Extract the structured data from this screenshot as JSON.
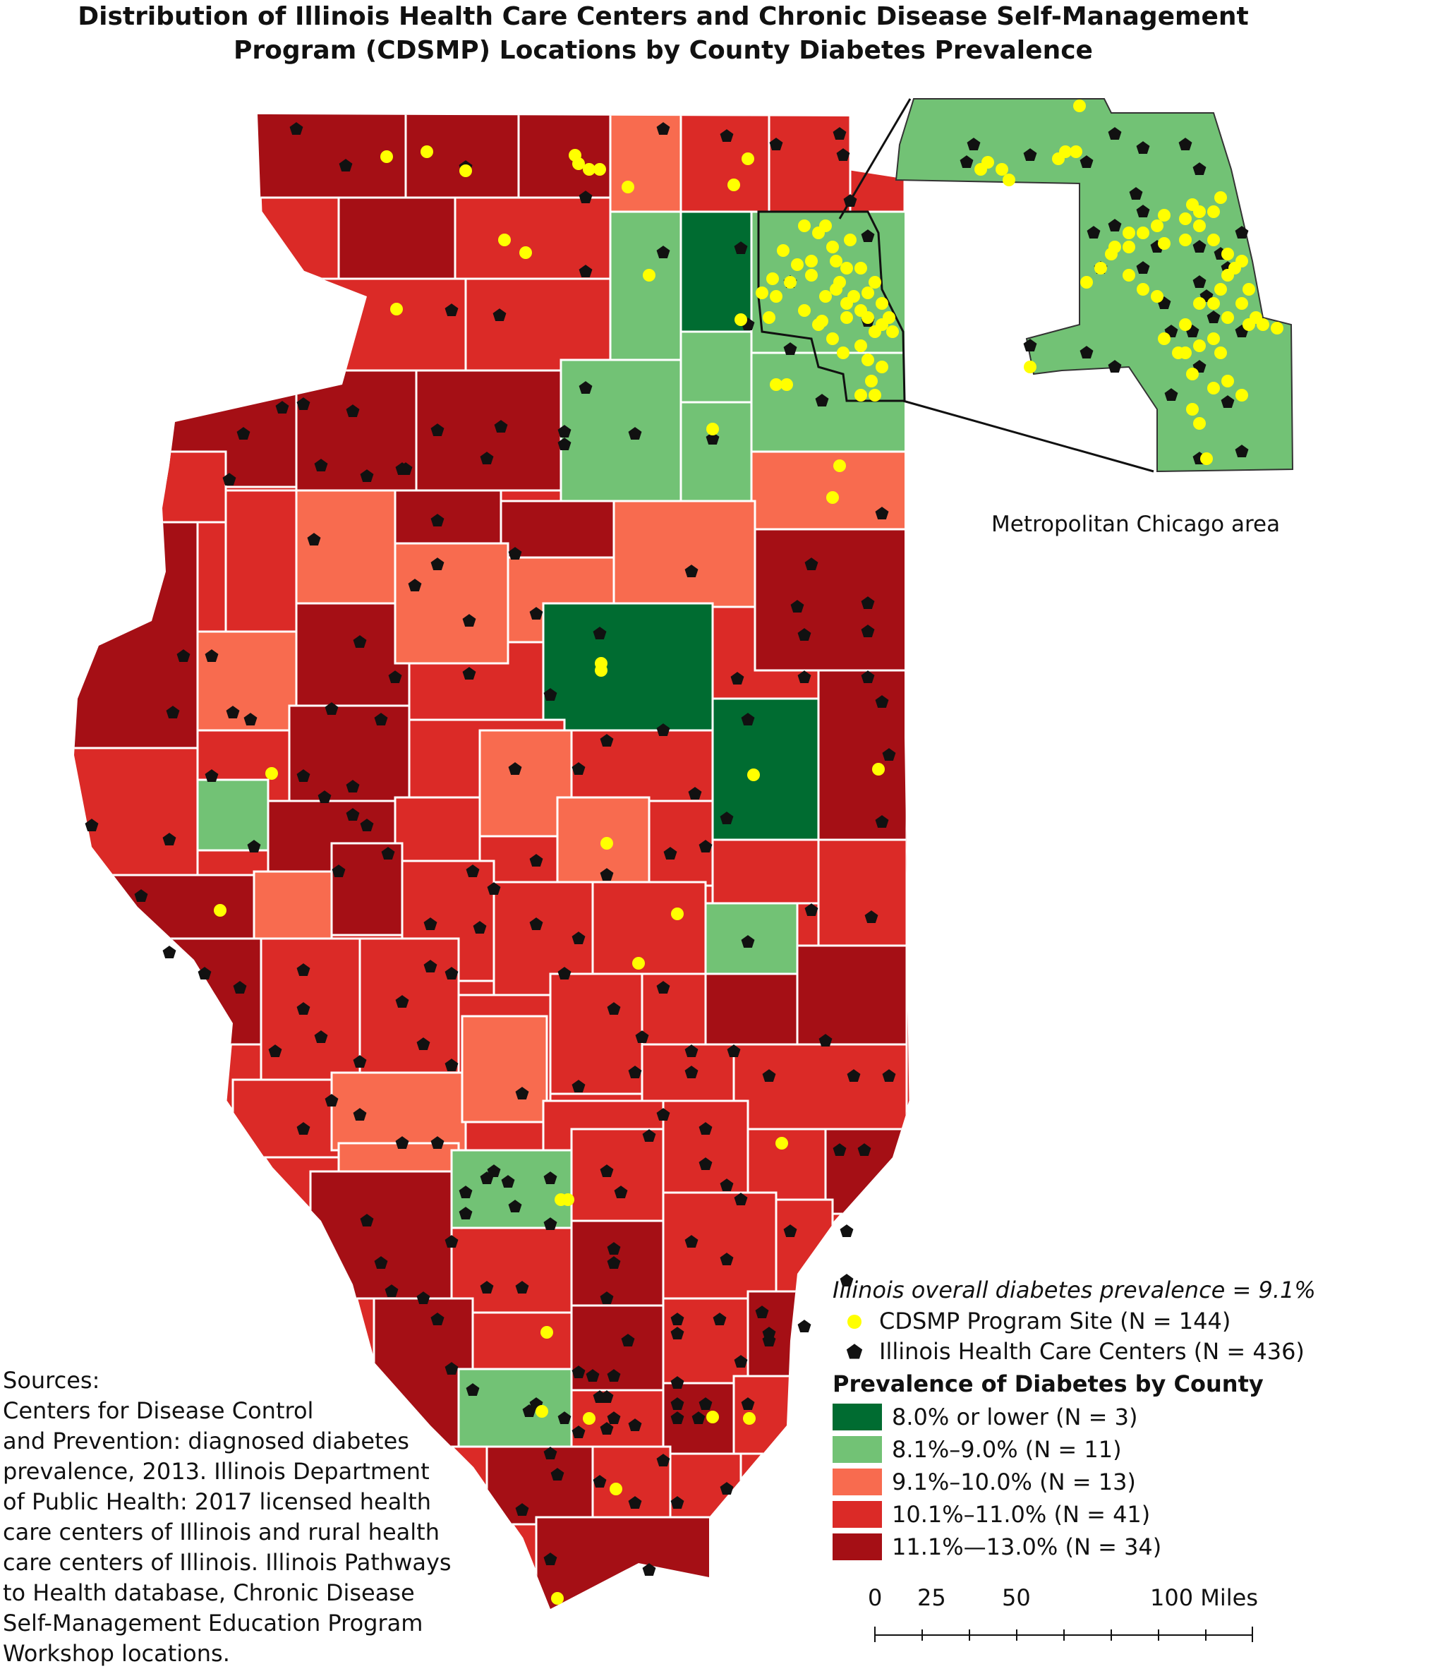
{
  "title": {
    "line1": "Distribution of Illinois Health Care Centers and Chronic Disease Self-Management",
    "line2": "Program (CDSMP) Locations by County Diabetes Prevalence"
  },
  "inset": {
    "caption": "Metropolitan Chicago area"
  },
  "colors": {
    "class1": "#006c31",
    "class2": "#72c275",
    "class3": "#f86b4f",
    "class4": "#db2a27",
    "class5": "#a50f15",
    "cdsmp_dot": "#ffff00",
    "health_center": "#111111"
  },
  "legend": {
    "overall_prevalence": "Illinois overall diabetes prevalence = 9.1%",
    "symbols": [
      {
        "label": "CDSMP Program Site (N = 144)",
        "icon": "yellow-circle"
      },
      {
        "label": "Illinois Health Care Centers (N = 436)",
        "icon": "black-pentagon"
      }
    ],
    "heading": "Prevalence of Diabetes by County",
    "classes": [
      {
        "label": "8.0% or lower (N = 3)",
        "color": "#006c31"
      },
      {
        "label": "8.1%–9.0% (N = 11)",
        "color": "#72c275"
      },
      {
        "label": "9.1%–10.0% (N = 13)",
        "color": "#f86b4f"
      },
      {
        "label": "10.1%–11.0% (N = 41)",
        "color": "#db2a27"
      },
      {
        "label": "11.1%—13.0% (N = 34)",
        "color": "#a50f15"
      }
    ]
  },
  "scale_bar": {
    "labels": [
      "0",
      "25",
      "50",
      "100 Miles"
    ]
  },
  "sources": {
    "lines": [
      "Sources:",
      "Centers for Disease Control",
      "and Prevention: diagnosed diabetes",
      "prevalence, 2013. Illinois Department",
      "of Public Health: 2017 licensed health",
      "care centers of Illinois and rural health",
      "care centers of Illinois. Illinois Pathways",
      "to Health database, Chronic Disease",
      "Self-Management Education Program",
      "Workshop locations."
    ]
  }
}
